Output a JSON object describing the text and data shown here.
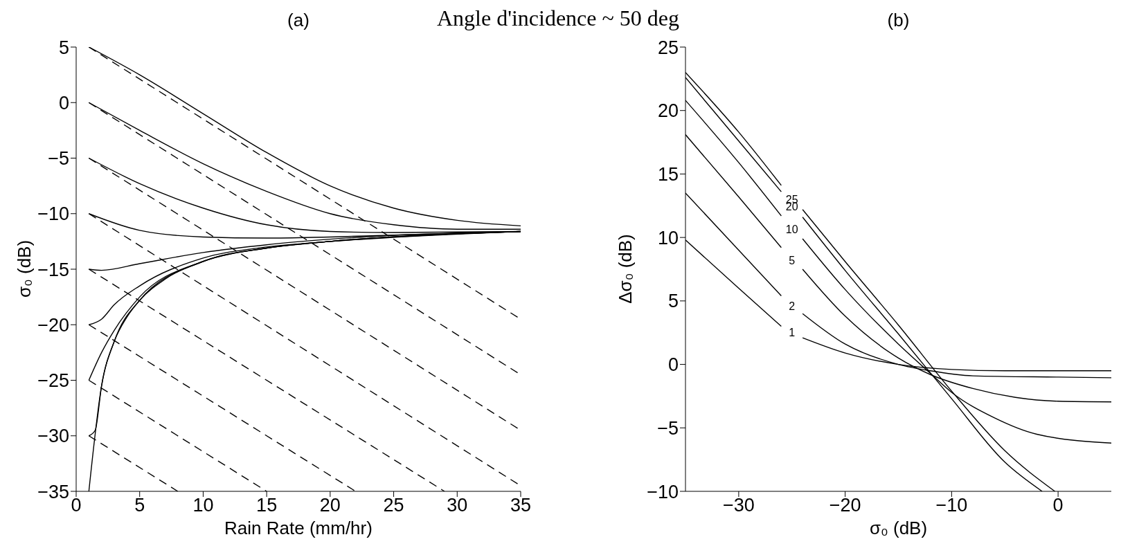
{
  "chart_data": [
    {
      "type": "line",
      "title": "(a)",
      "xlabel": "Rain Rate (mm/hr)",
      "ylabel": "σ₀ (dB)",
      "annotations": [
        "Angle d'incidence ~ 50 deg"
      ],
      "xlim": [
        0,
        35
      ],
      "xticks": [
        0,
        5,
        10,
        15,
        20,
        25,
        30,
        35
      ],
      "ylim": [
        -35,
        5
      ],
      "yticks": [
        -35,
        -30,
        -25,
        -20,
        -15,
        -10,
        -5,
        0,
        5
      ],
      "line_style": "solid",
      "series": [
        {
          "color": "#000000",
          "x": [
            1,
            5,
            10,
            15,
            20,
            25,
            30,
            35
          ],
          "values": [
            5,
            2.5,
            -1,
            -4.5,
            -7.5,
            -9.5,
            -10.6,
            -11.1
          ]
        },
        {
          "color": "#000000",
          "x": [
            1,
            5,
            10,
            15,
            20,
            25,
            30,
            35
          ],
          "values": [
            0,
            -2.5,
            -5.5,
            -8,
            -10,
            -11,
            -11.4,
            -11.4
          ]
        },
        {
          "color": "#000000",
          "x": [
            1,
            5,
            10,
            15,
            20,
            25,
            35
          ],
          "values": [
            -5,
            -7.3,
            -9.5,
            -11,
            -11.6,
            -11.7,
            -11.6
          ]
        },
        {
          "color": "#000000",
          "x": [
            1,
            5,
            10,
            15,
            20,
            35
          ],
          "values": [
            -10,
            -11.5,
            -12.1,
            -12.2,
            -12.1,
            -11.6
          ]
        },
        {
          "color": "#000000",
          "x": [
            1,
            2,
            5,
            10,
            15,
            20,
            35
          ],
          "values": [
            -15,
            -15.1,
            -14.5,
            -13.5,
            -12.8,
            -12.3,
            -11.6
          ]
        },
        {
          "color": "#000000",
          "x": [
            1,
            2,
            3,
            5,
            10,
            15,
            20,
            35
          ],
          "values": [
            -20,
            -19.5,
            -18.2,
            -16.5,
            -14,
            -13,
            -12.5,
            -11.6
          ]
        },
        {
          "color": "#000000",
          "x": [
            1,
            2,
            3,
            5,
            10,
            15,
            20,
            35
          ],
          "values": [
            -25,
            -22.5,
            -20.5,
            -17.5,
            -14.3,
            -13.1,
            -12.5,
            -11.6
          ]
        },
        {
          "color": "#000000",
          "x": [
            1,
            1.5,
            2,
            3,
            5,
            10,
            15,
            20,
            35
          ],
          "values": [
            -30,
            -29.5,
            -25.5,
            -21.5,
            -17.8,
            -14.3,
            -13.1,
            -12.5,
            -11.6
          ]
        },
        {
          "color": "#000000",
          "x": [
            1,
            2,
            3,
            4,
            5,
            7,
            10,
            15,
            20,
            25,
            30,
            35
          ],
          "values": [
            -35,
            -25.5,
            -21.5,
            -19.3,
            -17.8,
            -15.9,
            -14.3,
            -13.1,
            -12.5,
            -12.1,
            -11.8,
            -11.6
          ]
        },
        {
          "color": "#000000",
          "line_style": "dashed",
          "x": [
            1,
            35
          ],
          "values": [
            5,
            -19.5
          ]
        },
        {
          "color": "#000000",
          "line_style": "dashed",
          "x": [
            1,
            35
          ],
          "values": [
            0,
            -24.5
          ]
        },
        {
          "color": "#000000",
          "line_style": "dashed",
          "x": [
            1,
            35
          ],
          "values": [
            -5,
            -29.5
          ]
        },
        {
          "color": "#000000",
          "line_style": "dashed",
          "x": [
            1,
            35
          ],
          "values": [
            -10,
            -34.5
          ]
        },
        {
          "color": "#000000",
          "line_style": "dashed",
          "x": [
            1,
            29
          ],
          "values": [
            -15,
            -35
          ]
        },
        {
          "color": "#000000",
          "line_style": "dashed",
          "x": [
            1,
            22
          ],
          "values": [
            -20,
            -35
          ]
        },
        {
          "color": "#000000",
          "line_style": "dashed",
          "x": [
            1,
            15
          ],
          "values": [
            -25,
            -35
          ]
        },
        {
          "color": "#000000",
          "line_style": "dashed",
          "x": [
            1,
            8
          ],
          "values": [
            -30,
            -35
          ]
        }
      ]
    },
    {
      "type": "line",
      "title": "(b)",
      "xlabel": "σ₀ (dB)",
      "ylabel": "Δσ₀ (dB)",
      "xlim": [
        -35,
        5
      ],
      "xticks": [
        -30,
        -20,
        -10,
        0
      ],
      "ylim": [
        -10,
        25
      ],
      "yticks": [
        -10,
        -5,
        0,
        5,
        10,
        15,
        20,
        25
      ],
      "line_style": "solid",
      "series": [
        {
          "name": "1",
          "color": "#000000",
          "x": [
            -35,
            -30,
            -26,
            -25,
            -24,
            -20,
            -15,
            -10,
            -5,
            5
          ],
          "values": [
            9.8,
            6,
            3,
            null,
            2.1,
            0.9,
            0,
            -0.4,
            -0.5,
            -0.5
          ]
        },
        {
          "name": "2",
          "color": "#000000",
          "x": [
            -35,
            -30,
            -26,
            -25,
            -24,
            -20,
            -15,
            -12,
            -8,
            0,
            5
          ],
          "values": [
            13.5,
            9,
            5.4,
            null,
            4,
            1.6,
            0,
            -0.5,
            -0.9,
            -1,
            -1.05
          ]
        },
        {
          "name": "5",
          "color": "#000000",
          "x": [
            -35,
            -30,
            -26,
            -25,
            -24,
            -20,
            -15,
            -12,
            -8,
            -4,
            0,
            5
          ],
          "values": [
            18.1,
            13.2,
            9.2,
            null,
            7.5,
            3.8,
            0.5,
            -0.8,
            -1.9,
            -2.6,
            -2.9,
            -2.95
          ]
        },
        {
          "name": "10",
          "color": "#000000",
          "x": [
            -35,
            -30,
            -26,
            -25,
            -24,
            -20,
            -15,
            -12,
            -10,
            -6,
            -2,
            5
          ],
          "values": [
            20.8,
            15.9,
            11.7,
            null,
            9.9,
            5.9,
            1.6,
            -0.7,
            -2.2,
            -4.2,
            -5.5,
            -6.2
          ]
        },
        {
          "name": "20",
          "color": "#000000",
          "x": [
            -35,
            -30,
            -26,
            -25,
            -24,
            -20,
            -15,
            -10,
            -5,
            -1.5
          ],
          "values": [
            22.6,
            17.6,
            13.6,
            null,
            11.6,
            7.4,
            2.4,
            -2.7,
            -7.7,
            -10
          ]
        },
        {
          "name": "25",
          "color": "#000000",
          "x": [
            -35,
            -30,
            -26,
            -25,
            -24,
            -20,
            -15,
            -10,
            -5,
            -0.3
          ],
          "values": [
            23,
            18.3,
            14.1,
            null,
            12.2,
            8.1,
            3.1,
            -2.1,
            -6.8,
            -10
          ]
        }
      ]
    }
  ]
}
